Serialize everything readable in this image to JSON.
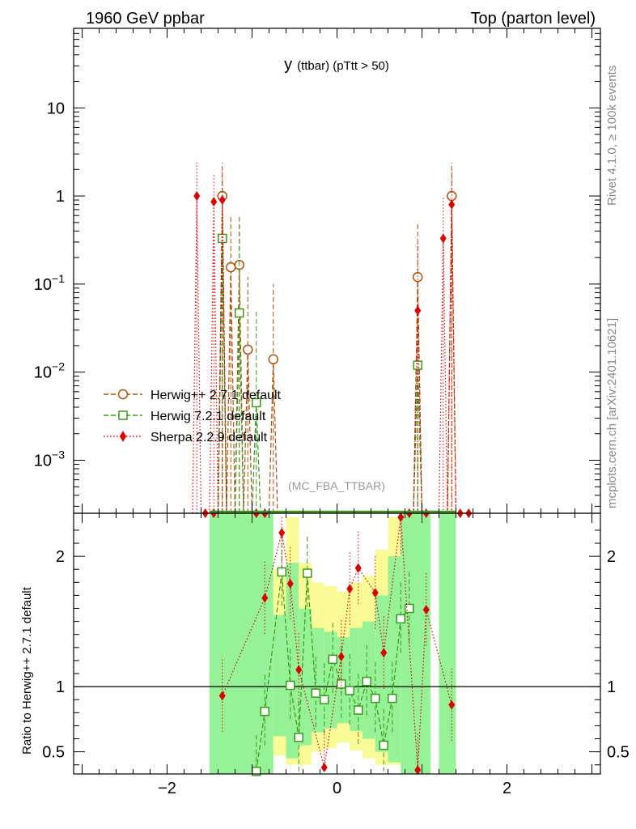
{
  "header": {
    "left": "1960 GeV ppbar",
    "right": "Top (parton level)"
  },
  "side_labels": {
    "rivet": "Rivet 4.1.0, ≥ 100k events",
    "mcplots": "mcplots.cern.ch [arXiv:2401.10621]"
  },
  "analysis_tag": "(MC_FBA_TTBAR)",
  "colors": {
    "herwigpp": "#b34f06",
    "herwig7": "#3a9a1a",
    "sherpa": "#e00000",
    "band_green": "#96f296",
    "band_yellow": "#fafa96"
  },
  "chart_data": [
    {
      "type": "line",
      "panel": "main",
      "title": "y (ttbar) (pTtt > 50)",
      "title_main": "y",
      "title_sub": "(ttbar) (pTtt > 50)",
      "xlim": [
        -3.1,
        3.1
      ],
      "ylim_log": [
        0.00025,
        80
      ],
      "yscale": "log",
      "ytick_labels": [
        {
          "value": 0.001,
          "base": "10",
          "exp": "−3"
        },
        {
          "value": 0.01,
          "base": "10",
          "exp": "−2"
        },
        {
          "value": 0.1,
          "base": "10",
          "exp": "−1"
        },
        {
          "value": 1,
          "base": "1",
          "exp": ""
        },
        {
          "value": 10,
          "base": "10",
          "exp": ""
        }
      ],
      "legend_position": "lower-left",
      "series": [
        {
          "name": "Herwig++ 2.7.1 default",
          "marker": "open-circle",
          "line": "dashed",
          "x": [
            -1.35,
            -1.25,
            -1.15,
            -1.05,
            -0.75,
            0.95,
            1.35
          ],
          "y": [
            1.0,
            0.155,
            0.165,
            0.018,
            0.014,
            0.12,
            1.0
          ],
          "err_up": [
            2.4,
            0.6,
            0.6,
            0.12,
            0.1,
            0.5,
            2.4
          ]
        },
        {
          "name": "Herwig 7.2.1 default",
          "marker": "open-square",
          "line": "dashed",
          "x": [
            -1.35,
            -1.15,
            -0.95,
            0.95
          ],
          "y": [
            0.33,
            0.047,
            0.0045,
            0.012
          ],
          "err_up": [
            1.6,
            0.5,
            0.05,
            0.1
          ]
        },
        {
          "name": "Sherpa 2.2.9 default",
          "marker": "filled-diamond",
          "line": "dotted",
          "x": [
            -1.65,
            -1.45,
            -1.35,
            0.95,
            1.25,
            1.35
          ],
          "y": [
            1.0,
            0.86,
            0.9,
            0.05,
            0.33,
            0.8
          ],
          "err_up": [
            2.4,
            1.8,
            1.9,
            0.3,
            1.0,
            1.9
          ]
        }
      ]
    },
    {
      "type": "line",
      "panel": "ratio",
      "ylabel": "Ratio to Herwig++ 2.7.1 default",
      "xlim": [
        -3.1,
        3.1
      ],
      "ylim": [
        0.33,
        2.33
      ],
      "x_tick_labels": [
        "−2",
        "0",
        "2"
      ],
      "x_tick_values": [
        -2,
        0,
        2
      ],
      "y_tick_labels": [
        "0.5",
        "1",
        "2"
      ],
      "y_tick_values": [
        0.5,
        1,
        2
      ],
      "reference": 1,
      "band_x_range": [
        -1.5,
        1.4
      ],
      "series": [
        {
          "name": "Herwig 7.2.1 default",
          "x": [
            -0.95,
            -0.85,
            -0.65,
            -0.55,
            -0.45,
            -0.35,
            -0.25,
            -0.15,
            -0.05,
            0.05,
            0.15,
            0.25,
            0.35,
            0.45,
            0.55,
            0.65,
            0.75,
            0.85
          ],
          "y": [
            0.35,
            0.81,
            1.88,
            1.01,
            0.61,
            1.87,
            0.95,
            0.9,
            1.21,
            1.02,
            0.97,
            0.82,
            1.04,
            0.91,
            0.55,
            0.91,
            1.52,
            1.6
          ]
        },
        {
          "name": "Sherpa 2.2.9 default",
          "x": [
            -1.35,
            -0.85,
            -0.65,
            -0.55,
            -0.45,
            -0.15,
            0.05,
            0.15,
            0.25,
            0.45,
            0.55,
            0.75,
            0.95,
            1.05,
            1.35
          ],
          "y": [
            0.93,
            1.68,
            2.18,
            1.79,
            1.13,
            0.38,
            1.23,
            1.75,
            1.91,
            1.72,
            1.26,
            2.3,
            0.36,
            1.59,
            0.86
          ]
        }
      ]
    }
  ]
}
